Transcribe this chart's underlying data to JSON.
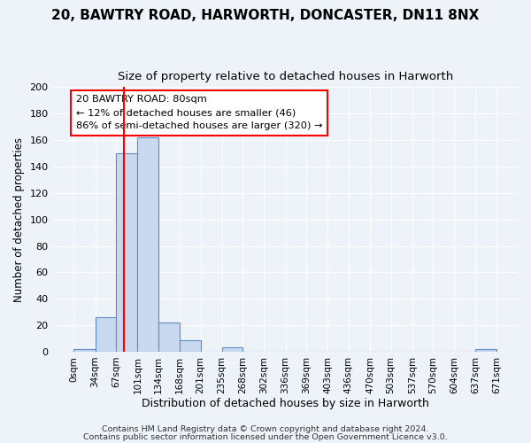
{
  "title1": "20, BAWTRY ROAD, HARWORTH, DONCASTER, DN11 8NX",
  "title2": "Size of property relative to detached houses in Harworth",
  "xlabel": "Distribution of detached houses by size in Harworth",
  "ylabel": "Number of detached properties",
  "bar_edges": [
    0,
    34,
    67,
    101,
    134,
    168,
    201,
    235,
    268,
    302,
    336,
    369,
    403,
    436,
    470,
    503,
    537,
    570,
    604,
    637,
    671
  ],
  "bar_heights": [
    2,
    26,
    150,
    162,
    22,
    9,
    0,
    3,
    0,
    0,
    0,
    0,
    0,
    0,
    0,
    0,
    0,
    0,
    0,
    2
  ],
  "bar_color": "#c9d9ef",
  "bar_edge_color": "#5b8dc8",
  "ylim": [
    0,
    200
  ],
  "yticks": [
    0,
    20,
    40,
    60,
    80,
    100,
    120,
    140,
    160,
    180,
    200
  ],
  "red_line_x": 80,
  "annotation_title": "20 BAWTRY ROAD: 80sqm",
  "annotation_line1": "← 12% of detached houses are smaller (46)",
  "annotation_line2": "86% of semi-detached houses are larger (320) →",
  "footer1": "Contains HM Land Registry data © Crown copyright and database right 2024.",
  "footer2": "Contains public sector information licensed under the Open Government Licence v3.0.",
  "bg_color": "#eef2f9",
  "plot_bg_color": "#eef2f9",
  "grid_color": "#ffffff",
  "tick_label_fontsize": 7.5,
  "ylabel_fontsize": 8.5,
  "xlabel_fontsize": 9,
  "title1_fontsize": 11,
  "title2_fontsize": 9.5,
  "footer_fontsize": 6.8
}
